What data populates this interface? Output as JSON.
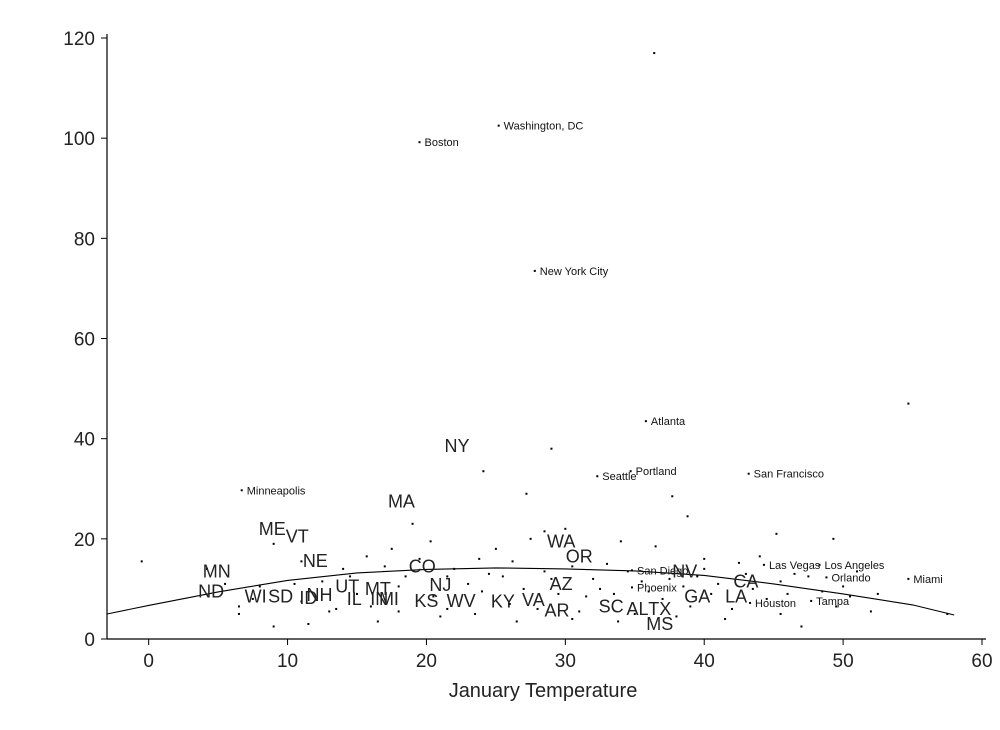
{
  "chart_data": {
    "type": "scatter",
    "title": "",
    "xlabel": "January Temperature",
    "ylabel": "",
    "xlim": [
      -3,
      60
    ],
    "ylim": [
      0,
      122
    ],
    "x_ticks": [
      0,
      10,
      20,
      30,
      40,
      50,
      60
    ],
    "y_ticks": [
      0,
      20,
      40,
      60,
      80,
      100,
      120
    ],
    "grid": false,
    "labeled_cities": [
      {
        "name": "Washington, DC",
        "x": 25.2,
        "y": 102.5
      },
      {
        "name": "Boston",
        "x": 19.5,
        "y": 99.2
      },
      {
        "name": "New York City",
        "x": 27.8,
        "y": 73.5
      },
      {
        "name": "Atlanta",
        "x": 35.8,
        "y": 43.5
      },
      {
        "name": "Minneapolis",
        "x": 6.7,
        "y": 29.7
      },
      {
        "name": "Seattle",
        "x": 32.3,
        "y": 32.5
      },
      {
        "name": "Portland",
        "x": 34.7,
        "y": 33.5
      },
      {
        "name": "San Francisco",
        "x": 43.2,
        "y": 33.0
      },
      {
        "name": "Las Vegas",
        "x": 44.3,
        "y": 14.8
      },
      {
        "name": "Los Angeles",
        "x": 48.3,
        "y": 14.8
      },
      {
        "name": "Orlando",
        "x": 48.8,
        "y": 12.3
      },
      {
        "name": "Miami",
        "x": 54.7,
        "y": 12.0
      },
      {
        "name": "San Diego",
        "x": 34.8,
        "y": 13.7
      },
      {
        "name": "Phoenix",
        "x": 34.8,
        "y": 10.3
      },
      {
        "name": "Houston",
        "x": 43.3,
        "y": 7.2
      },
      {
        "name": "Tampa",
        "x": 47.7,
        "y": 7.6
      }
    ],
    "state_labels": [
      {
        "name": "NY",
        "x": 22.2,
        "y": 38.5
      },
      {
        "name": "MA",
        "x": 18.2,
        "y": 27.5
      },
      {
        "name": "ME",
        "x": 8.9,
        "y": 22.0
      },
      {
        "name": "VT",
        "x": 10.7,
        "y": 20.5
      },
      {
        "name": "WA",
        "x": 29.7,
        "y": 19.5
      },
      {
        "name": "OR",
        "x": 31.0,
        "y": 16.5
      },
      {
        "name": "NE",
        "x": 12.0,
        "y": 15.6
      },
      {
        "name": "MN",
        "x": 4.9,
        "y": 13.5
      },
      {
        "name": "CO",
        "x": 19.7,
        "y": 14.5
      },
      {
        "name": "NV",
        "x": 38.6,
        "y": 13.5
      },
      {
        "name": "CA",
        "x": 43.0,
        "y": 11.5
      },
      {
        "name": "AZ",
        "x": 29.7,
        "y": 11.0
      },
      {
        "name": "ND",
        "x": 4.5,
        "y": 9.5
      },
      {
        "name": "NH",
        "x": 12.3,
        "y": 8.8
      },
      {
        "name": "WI",
        "x": 7.7,
        "y": 8.5
      },
      {
        "name": "SD",
        "x": 9.5,
        "y": 8.5
      },
      {
        "name": "ID",
        "x": 11.5,
        "y": 8.2
      },
      {
        "name": "UT",
        "x": 14.3,
        "y": 10.5
      },
      {
        "name": "MT",
        "x": 16.5,
        "y": 10.0
      },
      {
        "name": "NJ",
        "x": 21.0,
        "y": 10.8
      },
      {
        "name": "IL",
        "x": 14.8,
        "y": 8.0
      },
      {
        "name": "IN",
        "x": 16.6,
        "y": 8.0
      },
      {
        "name": "MI",
        "x": 17.3,
        "y": 8.0
      },
      {
        "name": "KS",
        "x": 20.0,
        "y": 7.6
      },
      {
        "name": "WV",
        "x": 22.5,
        "y": 7.6
      },
      {
        "name": "KY",
        "x": 25.5,
        "y": 7.5
      },
      {
        "name": "VA",
        "x": 27.7,
        "y": 7.8
      },
      {
        "name": "GA",
        "x": 39.5,
        "y": 8.5
      },
      {
        "name": "LA",
        "x": 42.3,
        "y": 8.5
      },
      {
        "name": "SC",
        "x": 33.3,
        "y": 6.5
      },
      {
        "name": "AL",
        "x": 35.2,
        "y": 6.0
      },
      {
        "name": "TX",
        "x": 36.8,
        "y": 6.0
      },
      {
        "name": "AR",
        "x": 29.4,
        "y": 5.7
      },
      {
        "name": "MS",
        "x": 36.8,
        "y": 3.0
      }
    ],
    "points_unlabeled": [
      [
        36.4,
        117
      ],
      [
        54.7,
        47
      ],
      [
        29.0,
        38
      ],
      [
        24.1,
        33.5
      ],
      [
        27.2,
        29
      ],
      [
        37.7,
        28.5
      ],
      [
        19.0,
        23
      ],
      [
        38.8,
        24.5
      ],
      [
        45.2,
        21
      ],
      [
        49.3,
        20
      ],
      [
        28.5,
        21.5
      ],
      [
        9.0,
        19
      ],
      [
        11.0,
        15.5
      ],
      [
        17.5,
        18
      ],
      [
        -0.5,
        15.5
      ],
      [
        4.2,
        14
      ],
      [
        15.7,
        16.5
      ],
      [
        20.3,
        19.5
      ],
      [
        23.8,
        16
      ],
      [
        26.2,
        15.5
      ],
      [
        30.5,
        14.5
      ],
      [
        33.0,
        15
      ],
      [
        40.0,
        16
      ],
      [
        42.5,
        15.2
      ],
      [
        44.0,
        16.5
      ],
      [
        46.5,
        13
      ],
      [
        51.0,
        13.5
      ],
      [
        52.5,
        9
      ],
      [
        50.5,
        8.5
      ],
      [
        45.5,
        5
      ],
      [
        47.0,
        2.5
      ],
      [
        41.5,
        4
      ],
      [
        38.0,
        4.5
      ],
      [
        33.8,
        3.5
      ],
      [
        30.5,
        4
      ],
      [
        26.5,
        3.5
      ],
      [
        23.5,
        5
      ],
      [
        21.0,
        4.5
      ],
      [
        18.0,
        5.5
      ],
      [
        16.5,
        3.5
      ],
      [
        13.5,
        6
      ],
      [
        9.0,
        2.5
      ],
      [
        6.5,
        5
      ],
      [
        6.5,
        6.5
      ],
      [
        14.5,
        12.5
      ],
      [
        18.5,
        12.5
      ],
      [
        21.5,
        12.5
      ],
      [
        25.5,
        12.5
      ],
      [
        28.5,
        13.5
      ],
      [
        32.0,
        12
      ],
      [
        35.5,
        11.5
      ],
      [
        37.5,
        12
      ],
      [
        39.5,
        12.5
      ],
      [
        41.0,
        11
      ],
      [
        43.5,
        10
      ],
      [
        46.0,
        9
      ],
      [
        48.5,
        9.5
      ],
      [
        12.5,
        11.5
      ],
      [
        8.0,
        10.5
      ],
      [
        10.5,
        11
      ],
      [
        22.0,
        14
      ],
      [
        24.0,
        9.5
      ],
      [
        27.0,
        10
      ],
      [
        29.5,
        9
      ],
      [
        31.5,
        8.5
      ],
      [
        33.5,
        9
      ],
      [
        36.0,
        9.5
      ],
      [
        38.5,
        10.5
      ],
      [
        40.5,
        9
      ],
      [
        44.5,
        8
      ],
      [
        49.5,
        6.5
      ],
      [
        52.0,
        5.5
      ],
      [
        57.5,
        5
      ],
      [
        17.0,
        14.5
      ],
      [
        19.5,
        16
      ],
      [
        25.0,
        18
      ],
      [
        27.5,
        20
      ],
      [
        30.0,
        22
      ],
      [
        34.0,
        19.5
      ],
      [
        36.5,
        18.5
      ],
      [
        16.0,
        6.5
      ],
      [
        13.0,
        5.5
      ],
      [
        11.5,
        3
      ],
      [
        28.0,
        6
      ],
      [
        31.0,
        5.5
      ],
      [
        35.0,
        5
      ],
      [
        39.0,
        6.5
      ],
      [
        42.0,
        6
      ],
      [
        20.5,
        8.5
      ],
      [
        23.0,
        11
      ],
      [
        26.0,
        7
      ],
      [
        29.0,
        12
      ],
      [
        32.5,
        10
      ],
      [
        34.5,
        13.5
      ],
      [
        37.0,
        8
      ],
      [
        40.0,
        14
      ],
      [
        43.0,
        13
      ],
      [
        45.5,
        11.5
      ],
      [
        47.5,
        12.5
      ],
      [
        50.0,
        10.5
      ],
      [
        15.0,
        9
      ],
      [
        18.0,
        10.5
      ],
      [
        21.5,
        6
      ],
      [
        24.5,
        13
      ],
      [
        14.0,
        14
      ],
      [
        11.0,
        7.5
      ],
      [
        7.5,
        8
      ],
      [
        5.5,
        11
      ]
    ],
    "smooth_curve": [
      [
        -3,
        5
      ],
      [
        0,
        6.7
      ],
      [
        5,
        9.4
      ],
      [
        10,
        11.7
      ],
      [
        15,
        13.2
      ],
      [
        20,
        13.9
      ],
      [
        25,
        14.2
      ],
      [
        30,
        14.0
      ],
      [
        35,
        13.6
      ],
      [
        40,
        12.7
      ],
      [
        45,
        11.0
      ],
      [
        50,
        9.0
      ],
      [
        55,
        6.8
      ],
      [
        58,
        4.8
      ]
    ]
  }
}
